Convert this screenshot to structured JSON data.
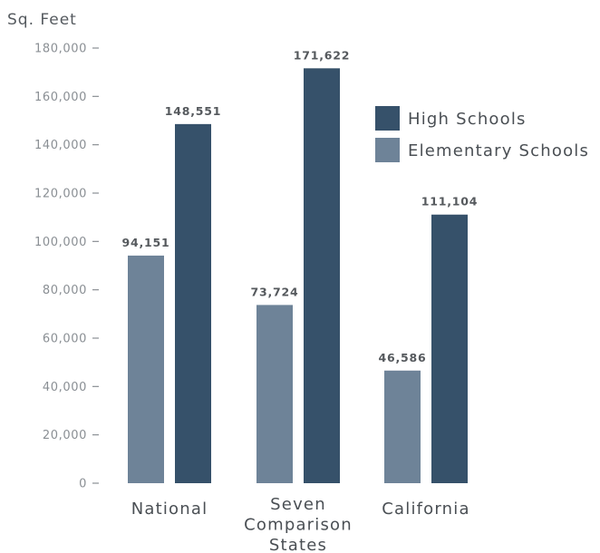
{
  "chart_data": {
    "type": "bar",
    "ylabel": "Sq. Feet",
    "ylim": [
      0,
      180000
    ],
    "ytick_values": [
      0,
      20000,
      40000,
      60000,
      80000,
      100000,
      120000,
      140000,
      160000,
      180000
    ],
    "ytick_labels": [
      "0",
      "20,000",
      "40,000",
      "60,000",
      "80,000",
      "100,000",
      "120,000",
      "140,000",
      "160,000",
      "180,000"
    ],
    "categories": [
      [
        "National"
      ],
      [
        "Seven",
        "Comparison",
        "States"
      ],
      [
        "California"
      ]
    ],
    "series": [
      {
        "name": "Elementary Schools",
        "color": "#6e8398",
        "values": [
          94151,
          73724,
          46586
        ],
        "labels": [
          "94,151",
          "73,724",
          "46,586"
        ]
      },
      {
        "name": "High Schools",
        "color": "#36516a",
        "values": [
          148551,
          171622,
          111104
        ],
        "labels": [
          "148,551",
          "171,622",
          "111,104"
        ]
      }
    ],
    "legend": {
      "position": "right",
      "order": [
        "High Schools",
        "Elementary Schools"
      ]
    },
    "grid": false
  }
}
